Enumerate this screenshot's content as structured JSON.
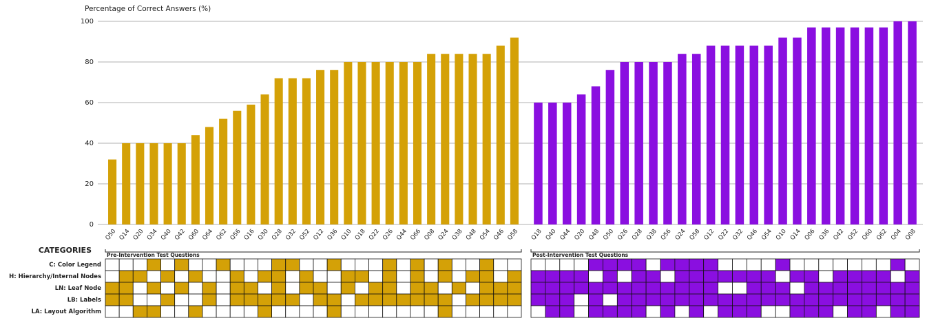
{
  "chart_data": {
    "type": "bar",
    "ylabel": "Percentage of Correct Answers (%)",
    "ylim": [
      0,
      100
    ],
    "yticks": [
      0,
      20,
      40,
      60,
      80,
      100
    ],
    "grid": true,
    "matrix_title": "CATEGORIES",
    "matrix_rows": [
      "C: Color Legend",
      "H: Hierarchy/Internal Nodes",
      "LN: Leaf Node",
      "LB: Labels",
      "LA: Layout Algorithm"
    ],
    "groups": [
      {
        "name": "Pre-Intervention Test Questions",
        "color": "#d4a107",
        "categories": [
          "Q50",
          "Q14",
          "Q20",
          "Q34",
          "Q40",
          "Q42",
          "Q60",
          "Q64",
          "Q62",
          "Q56",
          "Q16",
          "Q30",
          "Q28",
          "Q32",
          "Q52",
          "Q12",
          "Q36",
          "Q10",
          "Q18",
          "Q22",
          "Q26",
          "Q44",
          "Q66",
          "Q08",
          "Q24",
          "Q38",
          "Q48",
          "Q54",
          "Q46",
          "Q58"
        ],
        "values": [
          32,
          40,
          40,
          40,
          40,
          40,
          44,
          48,
          52,
          56,
          59,
          64,
          72,
          72,
          72,
          76,
          76,
          80,
          80,
          80,
          80,
          80,
          80,
          84,
          84,
          84,
          84,
          84,
          88,
          92
        ],
        "matrix": [
          [
            0,
            0,
            0,
            1,
            0,
            1,
            0,
            0,
            1,
            0,
            0,
            0,
            1,
            1,
            0,
            0,
            1,
            0,
            0,
            0,
            1,
            0,
            1,
            0,
            1,
            0,
            0,
            1,
            0,
            0
          ],
          [
            0,
            1,
            1,
            0,
            1,
            0,
            1,
            0,
            0,
            1,
            0,
            1,
            1,
            0,
            1,
            0,
            0,
            1,
            1,
            0,
            1,
            0,
            1,
            0,
            1,
            0,
            1,
            1,
            0,
            1
          ],
          [
            1,
            1,
            0,
            1,
            0,
            1,
            0,
            1,
            0,
            1,
            1,
            0,
            1,
            0,
            1,
            1,
            0,
            1,
            0,
            1,
            1,
            0,
            1,
            1,
            0,
            1,
            0,
            1,
            1,
            1
          ],
          [
            1,
            1,
            0,
            0,
            1,
            0,
            0,
            1,
            0,
            1,
            1,
            1,
            1,
            1,
            0,
            1,
            1,
            0,
            1,
            1,
            1,
            1,
            1,
            1,
            1,
            0,
            1,
            1,
            1,
            1
          ],
          [
            0,
            0,
            1,
            1,
            0,
            0,
            1,
            0,
            0,
            0,
            0,
            1,
            0,
            0,
            0,
            0,
            1,
            0,
            0,
            0,
            0,
            0,
            0,
            0,
            1,
            0,
            0,
            0,
            0,
            0
          ]
        ]
      },
      {
        "name": "Post-Intervention Test Questions",
        "color": "#8a0fe0",
        "categories": [
          "Q18",
          "Q40",
          "Q44",
          "Q20",
          "Q48",
          "Q50",
          "Q26",
          "Q28",
          "Q38",
          "Q56",
          "Q24",
          "Q58",
          "Q12",
          "Q22",
          "Q32",
          "Q46",
          "Q54",
          "Q10",
          "Q14",
          "Q06",
          "Q36",
          "Q42",
          "Q52",
          "Q60",
          "Q62",
          "Q04",
          "Q08"
        ],
        "values": [
          60,
          60,
          60,
          64,
          68,
          76,
          80,
          80,
          80,
          80,
          84,
          84,
          88,
          88,
          88,
          88,
          88,
          92,
          92,
          97,
          97,
          97,
          97,
          97,
          97,
          100,
          100
        ],
        "matrix": [
          [
            0,
            0,
            0,
            0,
            1,
            1,
            1,
            1,
            0,
            1,
            1,
            1,
            1,
            0,
            0,
            0,
            0,
            1,
            0,
            0,
            0,
            0,
            0,
            0,
            0,
            1,
            0
          ],
          [
            1,
            1,
            1,
            1,
            0,
            1,
            0,
            1,
            1,
            0,
            1,
            1,
            1,
            1,
            1,
            1,
            1,
            0,
            1,
            1,
            0,
            1,
            1,
            1,
            1,
            0,
            1
          ],
          [
            1,
            1,
            1,
            1,
            1,
            1,
            1,
            1,
            1,
            1,
            1,
            1,
            1,
            0,
            0,
            1,
            1,
            1,
            0,
            1,
            1,
            1,
            1,
            1,
            1,
            1,
            1
          ],
          [
            1,
            1,
            1,
            0,
            1,
            0,
            1,
            1,
            1,
            1,
            1,
            1,
            1,
            1,
            1,
            1,
            1,
            1,
            1,
            1,
            1,
            1,
            1,
            1,
            1,
            1,
            1
          ],
          [
            0,
            1,
            1,
            0,
            1,
            1,
            1,
            1,
            0,
            1,
            0,
            1,
            0,
            1,
            1,
            1,
            0,
            0,
            1,
            1,
            1,
            0,
            1,
            1,
            0,
            1,
            1
          ]
        ]
      }
    ]
  }
}
